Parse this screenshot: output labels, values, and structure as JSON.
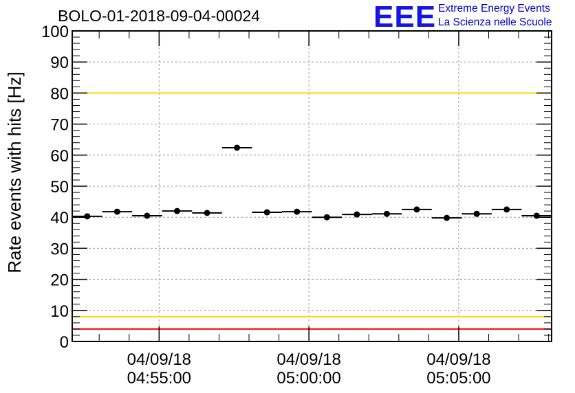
{
  "title": "BOLO-01-2018-09-04-00024",
  "logo": {
    "mark": "EEE",
    "line1": "Extreme Energy Events",
    "line2": "La Scienza nelle Scuole"
  },
  "colors": {
    "threshold_red": "#ff0000",
    "threshold_yellow": "#ffd700",
    "marker": "#000000",
    "logo": "#1515e6"
  },
  "chart_data": {
    "type": "scatter",
    "title": "BOLO-01-2018-09-04-00024",
    "xlabel": "",
    "ylabel": "Rate events with hits [Hz]",
    "ylim": [
      0,
      100
    ],
    "xlim": [
      "04:52:06",
      "05:08:06"
    ],
    "grid": true,
    "y_ticks": [
      0,
      10,
      20,
      30,
      40,
      50,
      60,
      70,
      80,
      90,
      100
    ],
    "x_ticks": [
      {
        "date": "04/09/18",
        "time": "04:55:00"
      },
      {
        "date": "04/09/18",
        "time": "05:00:00"
      },
      {
        "date": "04/09/18",
        "time": "05:05:00"
      }
    ],
    "threshold_lines": [
      {
        "value": 100,
        "color": "red"
      },
      {
        "value": 80,
        "color": "yellow"
      },
      {
        "value": 8,
        "color": "yellow"
      },
      {
        "value": 4,
        "color": "red"
      }
    ],
    "bin_width_seconds": 60,
    "x": [
      "04:52:36",
      "04:53:36",
      "04:54:36",
      "04:55:36",
      "04:56:36",
      "04:57:36",
      "04:58:36",
      "04:59:36",
      "05:00:36",
      "05:01:36",
      "05:02:36",
      "05:03:36",
      "05:04:36",
      "05:05:36",
      "05:06:36",
      "05:07:36"
    ],
    "values": [
      40.3,
      41.8,
      40.5,
      42.0,
      41.4,
      62.4,
      41.6,
      41.8,
      40.0,
      40.9,
      41.1,
      42.5,
      39.8,
      41.1,
      42.5,
      40.5
    ]
  }
}
